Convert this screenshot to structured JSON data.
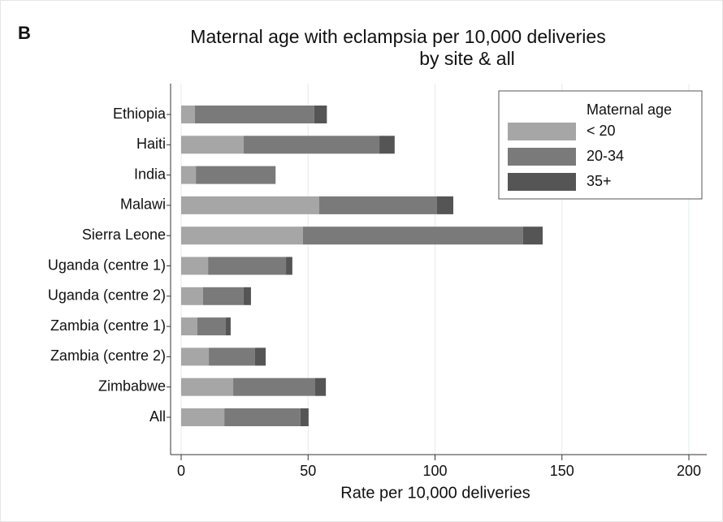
{
  "chart_data": {
    "type": "stacked-bar-horizontal",
    "panel_label": "B",
    "title": [
      "Maternal age with eclampsia per 10,000 deliveries",
      "by site & all"
    ],
    "xlabel": "Rate per 10,000 deliveries",
    "categories": [
      "Ethiopia",
      "Haiti",
      "India",
      "Malawi",
      "Sierra Leone",
      "Uganda (centre 1)",
      "Uganda (centre 2)",
      "Zambia (centre 1)",
      "Zambia (centre 2)",
      "Zimbabwe",
      "All"
    ],
    "legend_title": "Maternal age",
    "series": [
      {
        "name": "< 20",
        "color": "#a6a6a6",
        "values": [
          5.4,
          24.6,
          5.8,
          54.4,
          48,
          10.6,
          8.6,
          6.4,
          10.9,
          20.5,
          17
        ]
      },
      {
        "name": "20-34",
        "color": "#7a7a7a",
        "values": [
          47,
          53.5,
          31.4,
          46.4,
          86.7,
          30.7,
          16,
          11.2,
          18.2,
          32.3,
          30
        ]
      },
      {
        "name": "35+",
        "color": "#555555",
        "values": [
          5,
          6,
          0,
          6.4,
          7.7,
          2.5,
          2.9,
          1.9,
          4.2,
          4.2,
          3.2
        ]
      }
    ],
    "xlim": [
      0,
      200
    ],
    "xticks": [
      0,
      50,
      100,
      150,
      200
    ],
    "grid": true,
    "legend": "upper right"
  }
}
